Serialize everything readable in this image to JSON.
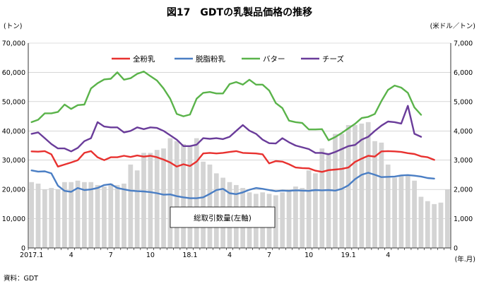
{
  "chart_data": {
    "type": "bar+line",
    "title": "図17　GDTの乳製品価格の推移",
    "left_unit": "(トン)",
    "right_unit": "(米ドル／トン)",
    "x_unit": "(年.月)",
    "source": "資料：GDT",
    "box_label": "総取引数量(左軸)",
    "left_ylim": [
      0,
      70000
    ],
    "right_ylim": [
      0,
      7000
    ],
    "left_ticks": [
      "0",
      "10,000",
      "20,000",
      "30,000",
      "40,000",
      "50,000",
      "60,000",
      "70,000"
    ],
    "right_ticks": [
      "0",
      "1,000",
      "2,000",
      "3,000",
      "4,000",
      "5,000",
      "6,000",
      "7,000"
    ],
    "x_tick_labels": [
      {
        "i": 0,
        "label": "2017.1"
      },
      {
        "i": 6,
        "label": "4"
      },
      {
        "i": 12,
        "label": "7"
      },
      {
        "i": 18,
        "label": "10"
      },
      {
        "i": 24,
        "label": "18.1"
      },
      {
        "i": 30,
        "label": "4"
      },
      {
        "i": 36,
        "label": "7"
      },
      {
        "i": 42,
        "label": "10"
      },
      {
        "i": 48,
        "label": "19.1"
      },
      {
        "i": 54,
        "label": "4"
      }
    ],
    "volume": [
      22500,
      22000,
      20000,
      20500,
      20000,
      22500,
      22500,
      23000,
      22500,
      22500,
      21500,
      21000,
      22000,
      21500,
      22000,
      28500,
      26500,
      32500,
      32500,
      33500,
      34000,
      37500,
      36500,
      35500,
      35000,
      37500,
      29500,
      28500,
      25500,
      24000,
      22500,
      21500,
      20500,
      19000,
      18500,
      19000,
      18500,
      18000,
      19000,
      20000,
      21000,
      20500,
      26500,
      25500,
      34000,
      32500,
      39000,
      39000,
      42000,
      42000,
      42500,
      43000,
      36500,
      36000,
      28500,
      24000,
      24500,
      25000,
      23000,
      17500,
      16000,
      15000,
      15500,
      20000
    ],
    "series": [
      {
        "name": "全粉乳",
        "color": "#e8312f",
        "values": [
          3300,
          3290,
          3310,
          3200,
          2780,
          2850,
          2920,
          3000,
          3250,
          3310,
          3100,
          3000,
          3100,
          3100,
          3150,
          3110,
          3160,
          3120,
          3150,
          3100,
          3020,
          2920,
          2780,
          2860,
          2800,
          2950,
          3230,
          3250,
          3230,
          3250,
          3280,
          3310,
          3250,
          3240,
          3230,
          3200,
          2890,
          2970,
          2950,
          2860,
          2750,
          2730,
          2720,
          2640,
          2600,
          2660,
          2680,
          2700,
          2750,
          2940,
          3050,
          3150,
          3120,
          3300,
          3310,
          3300,
          3280,
          3240,
          3210,
          3130,
          3100,
          3010
        ]
      },
      {
        "name": "脱脂粉乳",
        "color": "#4a7ec4",
        "values": [
          2650,
          2610,
          2620,
          2550,
          2130,
          1950,
          1920,
          2050,
          1980,
          2000,
          2050,
          2150,
          2180,
          2050,
          2000,
          1960,
          1940,
          1930,
          1910,
          1870,
          1820,
          1830,
          1770,
          1730,
          1700,
          1700,
          1730,
          1850,
          1980,
          2020,
          1870,
          1840,
          1900,
          1990,
          2050,
          2020,
          1980,
          1940,
          1960,
          1950,
          1970,
          1960,
          1950,
          1980,
          1970,
          1980,
          1960,
          2020,
          2140,
          2350,
          2500,
          2570,
          2500,
          2420,
          2430,
          2440,
          2480,
          2490,
          2470,
          2440,
          2390,
          2370
        ]
      },
      {
        "name": "バター",
        "color": "#5ab34a",
        "values": [
          4300,
          4380,
          4600,
          4600,
          4650,
          4900,
          4750,
          4880,
          4900,
          5450,
          5630,
          5760,
          5780,
          6000,
          5750,
          5800,
          5950,
          6030,
          5870,
          5720,
          5450,
          5100,
          4580,
          4500,
          4560,
          5100,
          5300,
          5330,
          5280,
          5280,
          5600,
          5670,
          5580,
          5750,
          5580,
          5580,
          5380,
          4950,
          4780,
          4350,
          4300,
          4270,
          4050,
          4050,
          4060,
          3680,
          3790,
          3930,
          4090,
          4240,
          4440,
          4480,
          4580,
          5020,
          5400,
          5550,
          5480,
          5300,
          4800,
          4550
        ]
      },
      {
        "name": "チーズ",
        "color": "#6a3c9a",
        "values": [
          3900,
          3950,
          3750,
          3550,
          3400,
          3400,
          3300,
          3420,
          3650,
          3750,
          4300,
          4150,
          4120,
          4120,
          3950,
          4000,
          4120,
          4060,
          4120,
          4100,
          4000,
          3850,
          3700,
          3480,
          3480,
          3530,
          3750,
          3730,
          3750,
          3720,
          3800,
          4000,
          4200,
          4010,
          3900,
          3700,
          3580,
          3570,
          3750,
          3610,
          3500,
          3440,
          3380,
          3250,
          3250,
          3200,
          3280,
          3380,
          3480,
          3520,
          3700,
          3800,
          4000,
          4180,
          4320,
          4300,
          4250,
          4860,
          3900,
          3800
        ]
      }
    ]
  }
}
